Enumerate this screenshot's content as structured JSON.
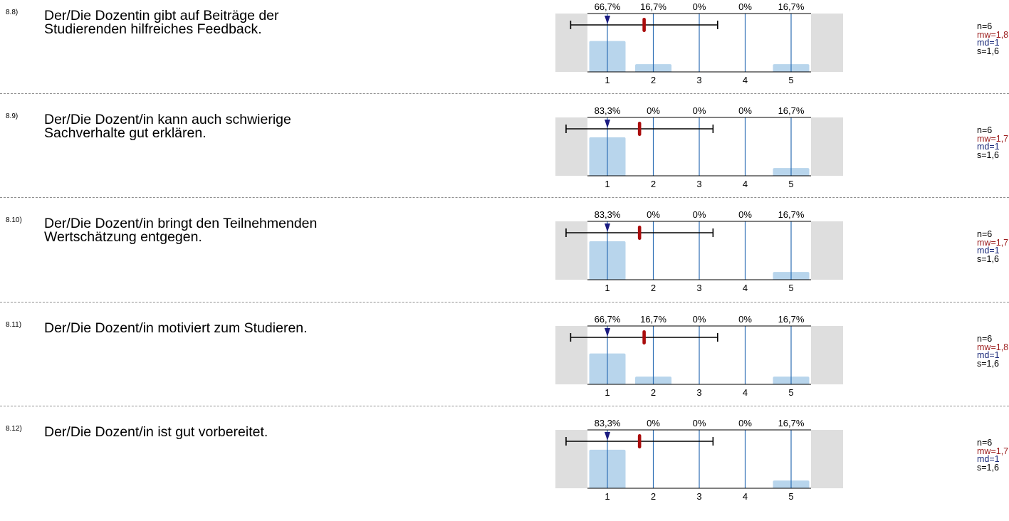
{
  "scale": {
    "categories": [
      "1",
      "2",
      "3",
      "4",
      "5"
    ]
  },
  "items": [
    {
      "number": "8.8)",
      "line1": "Der/Die Dozentin gibt auf Beiträge der",
      "line2": "Studierenden hilfreiches Feedback.",
      "percent_labels": [
        "66,7%",
        "16,7%",
        "0%",
        "0%",
        "16,7%"
      ],
      "percents": [
        66.7,
        16.7,
        0,
        0,
        16.7
      ],
      "mean": 1.8,
      "median": 1,
      "sd": 1.6,
      "stats": {
        "n": "n=6",
        "mw": "mw=1,8",
        "md": "md=1",
        "s": "s=1,6"
      }
    },
    {
      "number": "8.9)",
      "line1": "Der/Die Dozent/in kann auch schwierige",
      "line2": "Sachverhalte gut erklären.",
      "percent_labels": [
        "83,3%",
        "0%",
        "0%",
        "0%",
        "16,7%"
      ],
      "percents": [
        83.3,
        0,
        0,
        0,
        16.7
      ],
      "mean": 1.7,
      "median": 1,
      "sd": 1.6,
      "stats": {
        "n": "n=6",
        "mw": "mw=1,7",
        "md": "md=1",
        "s": "s=1,6"
      }
    },
    {
      "number": "8.10)",
      "line1": "Der/Die Dozent/in bringt den Teilnehmenden",
      "line2": "Wertschätzung entgegen.",
      "percent_labels": [
        "83,3%",
        "0%",
        "0%",
        "0%",
        "16,7%"
      ],
      "percents": [
        83.3,
        0,
        0,
        0,
        16.7
      ],
      "mean": 1.7,
      "median": 1,
      "sd": 1.6,
      "stats": {
        "n": "n=6",
        "mw": "mw=1,7",
        "md": "md=1",
        "s": "s=1,6"
      }
    },
    {
      "number": "8.11)",
      "line1": "Der/Die Dozent/in motiviert zum Studieren.",
      "line2": "",
      "percent_labels": [
        "66,7%",
        "16,7%",
        "0%",
        "0%",
        "16,7%"
      ],
      "percents": [
        66.7,
        16.7,
        0,
        0,
        16.7
      ],
      "mean": 1.8,
      "median": 1,
      "sd": 1.6,
      "stats": {
        "n": "n=6",
        "mw": "mw=1,8",
        "md": "md=1",
        "s": "s=1,6"
      }
    },
    {
      "number": "8.12)",
      "line1": "Der/Die Dozent/in ist gut vorbereitet.",
      "line2": "",
      "percent_labels": [
        "83,3%",
        "0%",
        "0%",
        "0%",
        "16,7%"
      ],
      "percents": [
        83.3,
        0,
        0,
        0,
        16.7
      ],
      "mean": 1.7,
      "median": 1,
      "sd": 1.6,
      "stats": {
        "n": "n=6",
        "mw": "mw=1,7",
        "md": "md=1",
        "s": "s=1,6"
      }
    }
  ],
  "colors": {
    "bar": "#b8d5ec",
    "gridline": "#2e6fb5",
    "side_panel": "#dedede",
    "mean_marker": "#aa0d0d",
    "median_marker": "#1b1b80",
    "sd_line": "#000000"
  },
  "chart_data": {
    "type": "bar",
    "categories": [
      "1",
      "2",
      "3",
      "4",
      "5"
    ],
    "ylim": [
      0,
      100
    ],
    "series": [
      {
        "name": "8.8)",
        "values": [
          66.7,
          16.7,
          0,
          0,
          16.7
        ]
      },
      {
        "name": "8.9)",
        "values": [
          83.3,
          0,
          0,
          0,
          16.7
        ]
      },
      {
        "name": "8.10)",
        "values": [
          83.3,
          0,
          0,
          0,
          16.7
        ]
      },
      {
        "name": "8.11)",
        "values": [
          66.7,
          16.7,
          0,
          0,
          16.7
        ]
      },
      {
        "name": "8.12)",
        "values": [
          83.3,
          0,
          0,
          0,
          16.7
        ]
      }
    ]
  }
}
